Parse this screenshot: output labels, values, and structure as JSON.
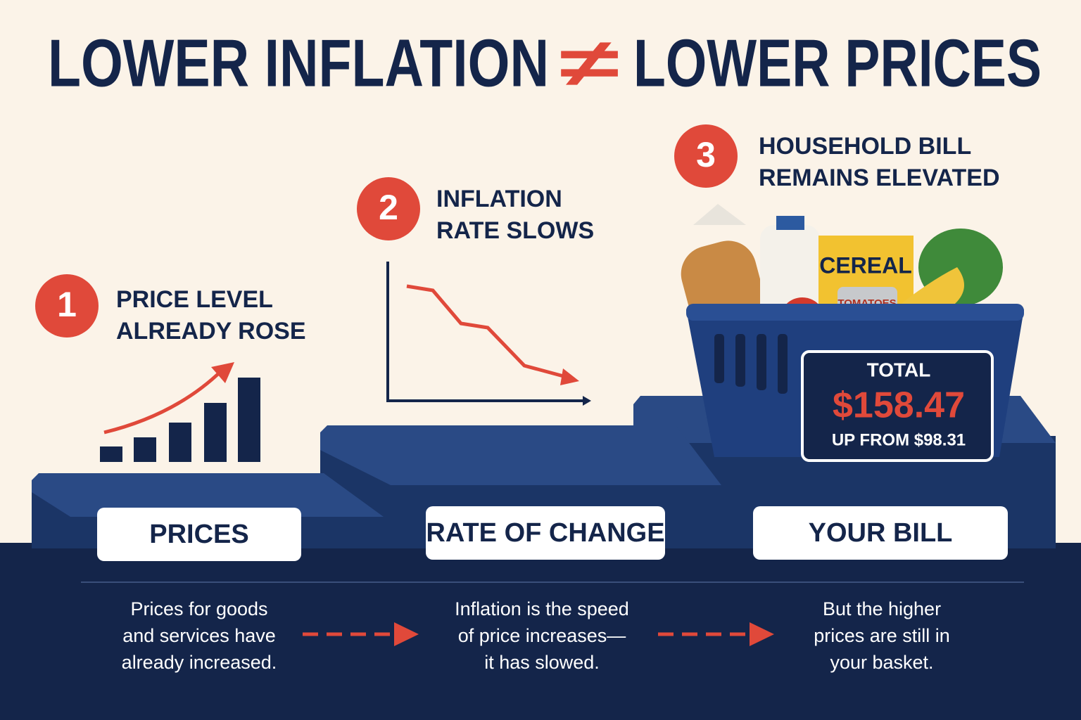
{
  "title": {
    "left": "LOWER INFLATION",
    "symbol": "≠",
    "right": "LOWER PRICES"
  },
  "steps": [
    {
      "number": "1",
      "heading": [
        "PRICE LEVEL",
        "ALREADY ROSE"
      ],
      "label": "PRICES",
      "description": [
        "Prices for goods",
        "and services have",
        "already increased."
      ]
    },
    {
      "number": "2",
      "heading": [
        "INFLATION",
        "RATE SLOWS"
      ],
      "label": "RATE OF CHANGE",
      "description": [
        "Inflation is the speed",
        "of price increases—",
        "it has slowed."
      ]
    },
    {
      "number": "3",
      "heading": [
        "HOUSEHOLD BILL",
        "REMAINS ELEVATED"
      ],
      "label": "YOUR BILL",
      "description": [
        "But the higher",
        "prices are still in",
        "your basket."
      ]
    }
  ],
  "basket": {
    "cereal": "CEREAL",
    "can": "TOMATOES",
    "total_label": "TOTAL",
    "total": "$158.47",
    "previous": "UP FROM $98.31"
  }
}
